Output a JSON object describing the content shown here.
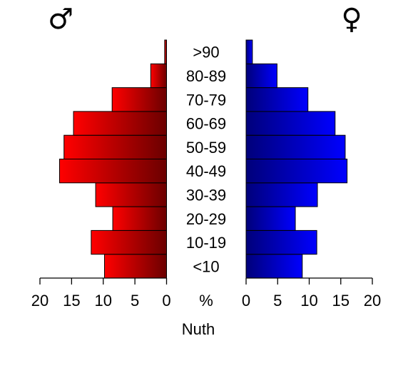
{
  "chart_data": {
    "type": "bar",
    "orientation": "horizontal",
    "layout": "population-pyramid",
    "title": "",
    "xlabel": "Nuth",
    "unit_label": "%",
    "categories": [
      "<10",
      "10-19",
      "20-29",
      "30-39",
      "40-49",
      "50-59",
      "60-69",
      "70-79",
      "80-89",
      ">90"
    ],
    "series": [
      {
        "name": "♂",
        "side": "left",
        "values": [
          9.8,
          11.9,
          8.5,
          11.2,
          16.9,
          16.2,
          14.7,
          8.6,
          2.5,
          0.3
        ]
      },
      {
        "name": "♀",
        "side": "right",
        "values": [
          8.9,
          11.2,
          7.8,
          11.3,
          16.0,
          15.7,
          14.1,
          9.8,
          4.9,
          1.0
        ]
      }
    ],
    "xlim": [
      0,
      20
    ],
    "xticks": [
      0,
      5,
      10,
      15,
      20
    ],
    "colors": {
      "male_outer": "#ff0000",
      "male_inner": "#6b0000",
      "female_outer": "#0000ff",
      "female_inner": "#00007a"
    },
    "grid": false,
    "legend": "symbols-top"
  }
}
